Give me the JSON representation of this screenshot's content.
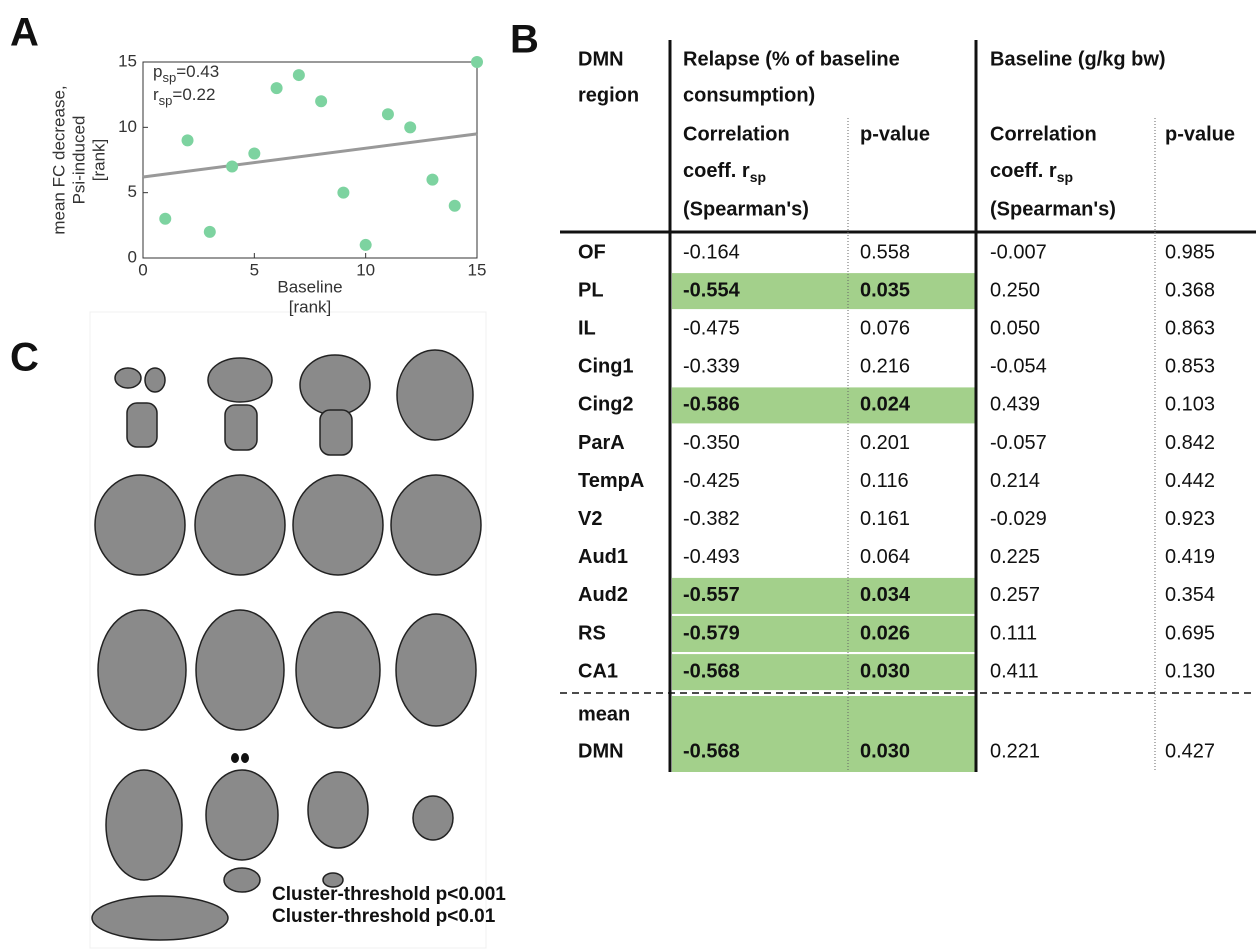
{
  "panel_labels": {
    "A": "A",
    "B": "B",
    "C": "C"
  },
  "chart_data": {
    "type": "scatter",
    "x": [
      1,
      2,
      3,
      4,
      5,
      6,
      7,
      8,
      9,
      10,
      11,
      12,
      13,
      14,
      15
    ],
    "values": [
      3,
      9,
      2,
      7,
      8,
      13,
      14,
      12,
      5,
      1,
      11,
      10,
      6,
      4,
      15
    ],
    "color": "#7dd3a0",
    "xlim": [
      0,
      15
    ],
    "ylim": [
      0,
      15
    ],
    "xticks": [
      0,
      5,
      10,
      15
    ],
    "yticks": [
      0,
      5,
      10,
      15
    ],
    "x_label": [
      "Baseline",
      "[rank]"
    ],
    "y_label": [
      "mean FC decrease,",
      "Psi-induced",
      "[rank]"
    ],
    "fit": {
      "x": [
        0,
        15
      ],
      "y": [
        6.2,
        9.5
      ],
      "color": "#999999"
    },
    "annotations": [
      {
        "symbol": "p",
        "sub": "sp",
        "text": "=0.43"
      },
      {
        "symbol": "r",
        "sub": "sp",
        "text": "=0.22"
      }
    ]
  },
  "table": {
    "region_header": [
      "DMN",
      "region"
    ],
    "groups": [
      {
        "title": [
          "Relapse (% of baseline",
          "consumption)"
        ],
        "coef_header": {
          "line1": "Correlation",
          "line2": "coeff. r",
          "sub": "sp",
          "line3": "(Spearman's)"
        },
        "p_header": "p-value"
      },
      {
        "title": [
          "Baseline (g/kg bw)"
        ],
        "coef_header": {
          "line1": "Correlation",
          "line2": "coeff. r",
          "sub": "sp",
          "line3": "(Spearman's)"
        },
        "p_header": "p-value"
      }
    ],
    "highlight_color": "#a3d08b",
    "rows": [
      {
        "region": "OF",
        "values": [
          "-0.164",
          "0.558",
          "-0.007",
          "0.985"
        ],
        "highlight": false
      },
      {
        "region": "PL",
        "values": [
          "-0.554",
          "0.035",
          "0.250",
          "0.368"
        ],
        "highlight": true
      },
      {
        "region": "IL",
        "values": [
          "-0.475",
          "0.076",
          "0.050",
          "0.863"
        ],
        "highlight": false
      },
      {
        "region": "Cing1",
        "values": [
          "-0.339",
          "0.216",
          "-0.054",
          "0.853"
        ],
        "highlight": false
      },
      {
        "region": "Cing2",
        "values": [
          "-0.586",
          "0.024",
          "0.439",
          "0.103"
        ],
        "highlight": true
      },
      {
        "region": "ParA",
        "values": [
          "-0.350",
          "0.201",
          "-0.057",
          "0.842"
        ],
        "highlight": false
      },
      {
        "region": "TempA",
        "values": [
          "-0.425",
          "0.116",
          "0.214",
          "0.442"
        ],
        "highlight": false
      },
      {
        "region": "V2",
        "values": [
          "-0.382",
          "0.161",
          "-0.029",
          "0.923"
        ],
        "highlight": false
      },
      {
        "region": "Aud1",
        "values": [
          "-0.493",
          "0.064",
          "0.225",
          "0.419"
        ],
        "highlight": false
      },
      {
        "region": "Aud2",
        "values": [
          "-0.557",
          "0.034",
          "0.257",
          "0.354"
        ],
        "highlight": true
      },
      {
        "region": "RS",
        "values": [
          "-0.579",
          "0.026",
          "0.111",
          "0.695"
        ],
        "highlight": true
      },
      {
        "region": "CA1",
        "values": [
          "-0.568",
          "0.030",
          "0.411",
          "0.130"
        ],
        "highlight": true
      }
    ],
    "summary_row": {
      "region": [
        "mean",
        "DMN"
      ],
      "values": [
        "-0.568",
        "0.030",
        "0.221",
        "0.427"
      ],
      "highlight": true
    }
  },
  "legend": [
    {
      "text": "Cluster-threshold p<0.001",
      "color": "#33e3ea"
    },
    {
      "text": "Cluster-threshold p<0.01",
      "color": "#1c78d6"
    }
  ]
}
